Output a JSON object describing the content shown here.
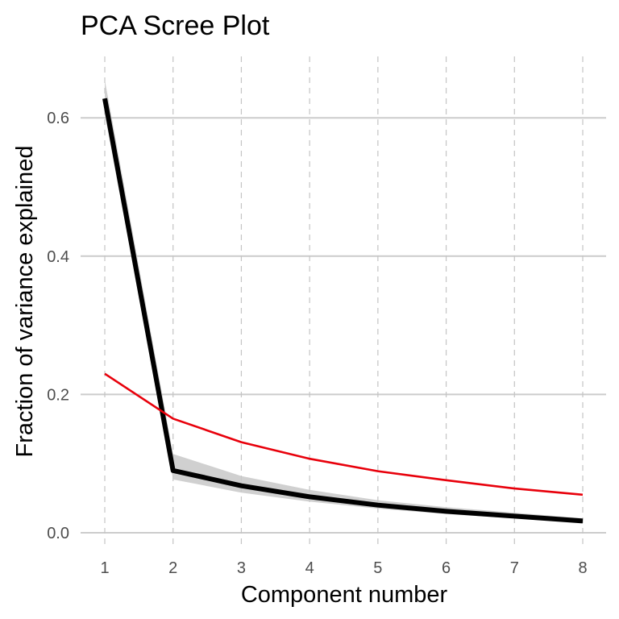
{
  "chart_data": {
    "type": "line",
    "title": "PCA Scree Plot",
    "xlabel": "Component number",
    "ylabel": "Fraction of variance explained",
    "xlim": [
      1,
      8
    ],
    "ylim": [
      0,
      0.65
    ],
    "x_ticks": [
      1,
      2,
      3,
      4,
      5,
      6,
      7,
      8
    ],
    "x_tick_labels": [
      "1",
      "2",
      "3",
      "4",
      "5",
      "6",
      "7",
      "8"
    ],
    "y_ticks": [
      0.0,
      0.2,
      0.4,
      0.6
    ],
    "y_tick_labels": [
      "0.0",
      "0.2",
      "0.4",
      "0.6"
    ],
    "grid": {
      "horizontal": "solid",
      "vertical": "dashed"
    },
    "x": [
      1,
      2,
      3,
      4,
      5,
      6,
      7,
      8
    ],
    "series": [
      {
        "role": "observed",
        "values": [
          0.628,
          0.09,
          0.068,
          0.052,
          0.04,
          0.031,
          0.024,
          0.017
        ],
        "band_lower": [
          0.605,
          0.077,
          0.058,
          0.045,
          0.035,
          0.027,
          0.021,
          0.015
        ],
        "band_upper": [
          0.655,
          0.114,
          0.082,
          0.062,
          0.047,
          0.037,
          0.029,
          0.021
        ],
        "color": "#000000",
        "band_color": "#c8c8c8"
      },
      {
        "role": "reference",
        "values": [
          0.23,
          0.165,
          0.131,
          0.107,
          0.089,
          0.076,
          0.064,
          0.055
        ],
        "color": "#e8000b"
      }
    ]
  }
}
